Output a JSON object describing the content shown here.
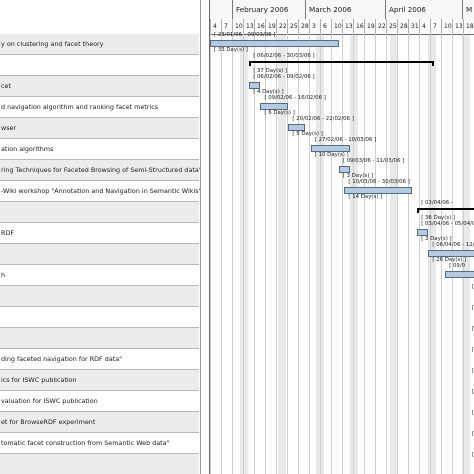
{
  "timeline": {
    "months": [
      "February 2006",
      "March 2006",
      "April 2006",
      "M"
    ],
    "days": [
      "7",
      "",
      "10",
      "",
      "17",
      "",
      "24",
      "",
      "3",
      "",
      "10",
      "",
      "17",
      "",
      "24",
      "",
      "4",
      "",
      "11",
      "",
      "18",
      "",
      "25",
      "",
      "1"
    ]
  },
  "day_numbers": [
    "4",
    "7",
    "10",
    "13",
    "16",
    "19",
    "22",
    "25",
    "28",
    "3",
    "6",
    "10",
    "13",
    "16",
    "19",
    "22",
    "25",
    "28",
    "31",
    "4",
    "7",
    "10",
    "13",
    "18",
    "21"
  ],
  "tasks": [
    {
      "label": "y on clustering and facet theory",
      "dates": "[ 23/01/06 - 09/03/06 ]",
      "duration": "[ 33 Day(s) ]",
      "kind": "bar",
      "start": 0,
      "span": 23
    },
    {
      "label": "",
      "dates": "[ 06/02/06 - 30/03/06 ]",
      "duration": "[ 37 Day(s) ]",
      "kind": "summary",
      "start": 7,
      "span": 33
    },
    {
      "label": "cet",
      "dates": "[ 06/02/06 - 09/02/06 ]",
      "duration": "[ 4 Day(s) ]",
      "kind": "bar",
      "start": 7,
      "span": 2
    },
    {
      "label": "d navigation algorithm and ranking facet metrics",
      "dates": "[ 09/02/06 - 16/02/06 ]",
      "duration": "[ 6 Day(s) ]",
      "kind": "bar",
      "start": 9,
      "span": 5
    },
    {
      "label": "wser",
      "dates": "[ 20/02/06 - 22/02/06 ]",
      "duration": "[ 5 Day(s) ]",
      "kind": "bar",
      "start": 14,
      "span": 3
    },
    {
      "label": "ation algorithms",
      "dates": "[ 27/02/06 - 10/03/06 ]",
      "duration": "[ 10 Day(s) ]",
      "kind": "bar",
      "start": 18,
      "span": 7
    },
    {
      "label": "ring Techniques for Faceted Browsing of Semi-Structured data\"",
      "dates": "[ 09/03/06 - 11/03/06 ]",
      "duration": "[ 3 Day(s) ]",
      "kind": "bar",
      "start": 23,
      "span": 2
    },
    {
      "label": "-Wiki workshop \"Annotation and Navigation in Semantic Wikis\"",
      "dates": "[ 10/03/06 - 30/03/06 ]",
      "duration": "[ 14 Day(s) ]",
      "kind": "bar",
      "start": 24,
      "span": 12
    },
    {
      "label": "",
      "dates": "[ 03/04/06 - ",
      "duration": "[ 36 Day(s) ]",
      "kind": "summary",
      "start": 37,
      "span": 20
    },
    {
      "label": "RDF",
      "dates": "[ 03/04/06 - 05/04/06 ]",
      "duration": "[ 3 Day(s) ]",
      "kind": "bar",
      "start": 37,
      "span": 2
    },
    {
      "label": "",
      "dates": "[ 06/04/06 - 12/05/06 ]",
      "duration": "[ 26 Day(s) ]",
      "kind": "bar",
      "start": 39,
      "span": 20
    },
    {
      "label": "h",
      "dates": "[ 09/0",
      "duration": "",
      "kind": "bar",
      "start": 42,
      "span": 10
    },
    {
      "label": "",
      "dates": "[ 0",
      "duration": "",
      "kind": "bar",
      "start": 52,
      "span": 4
    },
    {
      "label": "",
      "dates": "[ 1",
      "duration": "",
      "kind": "bar",
      "start": 52,
      "span": 4
    },
    {
      "label": "",
      "dates": "[ 0",
      "duration": "",
      "kind": "bar",
      "start": 52,
      "span": 4
    },
    {
      "label": "ding faceted navigation for RDF data\"",
      "dates": "[ 0",
      "duration": "",
      "kind": "bar",
      "start": 52,
      "span": 4
    },
    {
      "label": "ics for ISWC publication",
      "dates": "[ 0",
      "duration": "",
      "kind": "bar",
      "start": 52,
      "span": 4
    },
    {
      "label": "valuation for ISWC publication",
      "dates": "[ 04/0",
      "duration": "",
      "kind": "bar",
      "start": 52,
      "span": 4
    },
    {
      "label": "et for BrowseRDF experiment",
      "dates": "[ 04/0",
      "duration": "",
      "kind": "bar",
      "start": 52,
      "span": 4
    },
    {
      "label": "tomatic facet construction from Semantic Web data\"",
      "dates": "[ 04/0",
      "duration": "",
      "kind": "bar",
      "start": 52,
      "span": 4
    },
    {
      "label": "",
      "dates": "[ 0",
      "duration": "",
      "kind": "bar",
      "start": 52,
      "span": 4
    }
  ]
}
